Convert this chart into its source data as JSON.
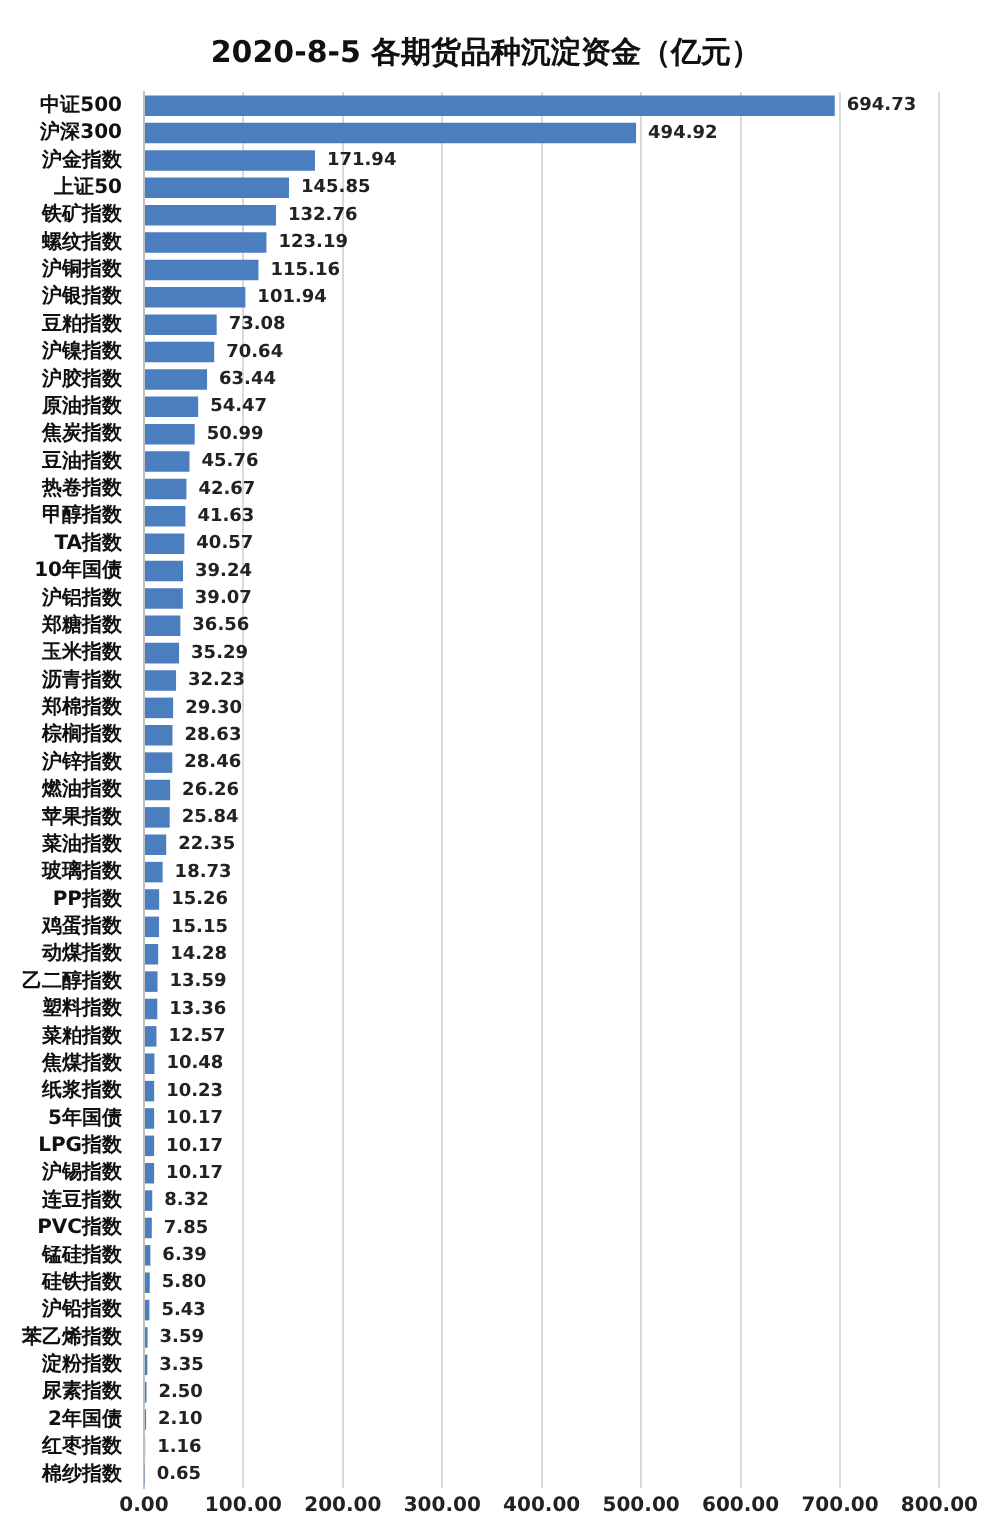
{
  "chart_data": {
    "type": "bar",
    "orientation": "horizontal",
    "title": "2020-8-5 各期货品种沉淀资金（亿元）",
    "categories": [
      "中证500",
      "沪深300",
      "沪金指数",
      "上证50",
      "铁矿指数",
      "螺纹指数",
      "沪铜指数",
      "沪银指数",
      "豆粕指数",
      "沪镍指数",
      "沪胶指数",
      "原油指数",
      "焦炭指数",
      "豆油指数",
      "热卷指数",
      "甲醇指数",
      "TA指数",
      "10年国债",
      "沪铝指数",
      "郑糖指数",
      "玉米指数",
      "沥青指数",
      "郑棉指数",
      "棕榈指数",
      "沪锌指数",
      "燃油指数",
      "苹果指数",
      "菜油指数",
      "玻璃指数",
      "PP指数",
      "鸡蛋指数",
      "动煤指数",
      "乙二醇指数",
      "塑料指数",
      "菜粕指数",
      "焦煤指数",
      "纸浆指数",
      "5年国债",
      "LPG指数",
      "沪锡指数",
      "连豆指数",
      "PVC指数",
      "锰硅指数",
      "硅铁指数",
      "沪铅指数",
      "苯乙烯指数",
      "淀粉指数",
      "尿素指数",
      "2年国债",
      "红枣指数",
      "棉纱指数"
    ],
    "values": [
      694.73,
      494.92,
      171.94,
      145.85,
      132.76,
      123.19,
      115.16,
      101.94,
      73.08,
      70.64,
      63.44,
      54.47,
      50.99,
      45.76,
      42.67,
      41.63,
      40.57,
      39.24,
      39.07,
      36.56,
      35.29,
      32.23,
      29.3,
      28.63,
      28.46,
      26.26,
      25.84,
      22.35,
      18.73,
      15.26,
      15.15,
      14.28,
      13.59,
      13.36,
      12.57,
      10.48,
      10.23,
      10.17,
      10.17,
      10.17,
      8.32,
      7.85,
      6.39,
      5.8,
      5.43,
      3.59,
      3.35,
      2.5,
      2.1,
      1.16,
      0.65
    ],
    "value_labels": [
      "694.73",
      "494.92",
      "171.94",
      "145.85",
      "132.76",
      "123.19",
      "115.16",
      "101.94",
      "73.08",
      "70.64",
      "63.44",
      "54.47",
      "50.99",
      "45.76",
      "42.67",
      "41.63",
      "40.57",
      "39.24",
      "39.07",
      "36.56",
      "35.29",
      "32.23",
      "29.30",
      "28.63",
      "28.46",
      "26.26",
      "25.84",
      "22.35",
      "18.73",
      "15.26",
      "15.15",
      "14.28",
      "13.59",
      "13.36",
      "12.57",
      "10.48",
      "10.23",
      "10.17",
      "10.17",
      "10.17",
      "8.32",
      "7.85",
      "6.39",
      "5.80",
      "5.43",
      "3.59",
      "3.35",
      "2.50",
      "2.10",
      "1.16",
      "0.65"
    ],
    "color": "#4a7ebf",
    "xlim": [
      0,
      800
    ],
    "xticks": [
      {
        "value": 0,
        "label": "0.00"
      },
      {
        "value": 100,
        "label": "100.00"
      },
      {
        "value": 200,
        "label": "200.00"
      },
      {
        "value": 300,
        "label": "300.00"
      },
      {
        "value": 400,
        "label": "400.00"
      },
      {
        "value": 500,
        "label": "500.00"
      },
      {
        "value": 600,
        "label": "600.00"
      },
      {
        "value": 700,
        "label": "700.00"
      },
      {
        "value": 800,
        "label": "800.00"
      }
    ],
    "grid": "x"
  }
}
